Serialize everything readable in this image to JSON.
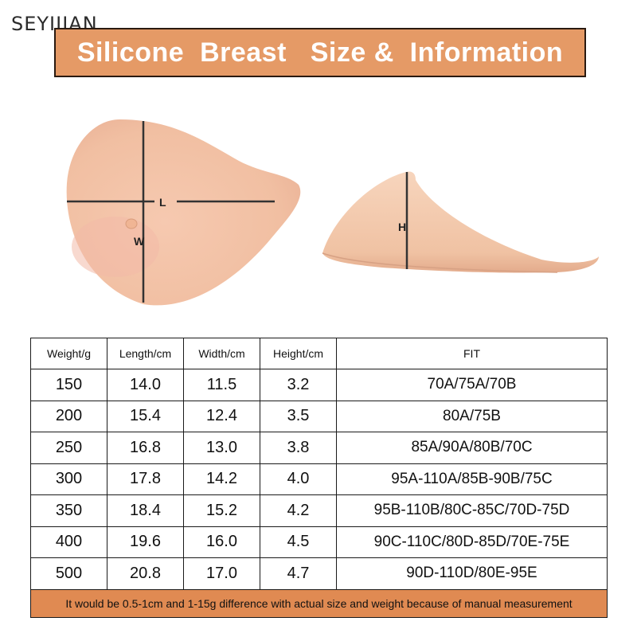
{
  "watermark": "SEYIJIAN",
  "title": "Silicone  Breast   Size &  Information",
  "labels": {
    "length": "L",
    "width": "W",
    "height": "H"
  },
  "colors": {
    "banner": "#e59a66",
    "note_row": "#e08a52",
    "skin": "#f2c2a2"
  },
  "table": {
    "headers": [
      "Weight/g",
      "Length/cm",
      "Width/cm",
      "Height/cm",
      "FIT"
    ],
    "rows": [
      [
        "150",
        "14.0",
        "11.5",
        "3.2",
        "70A/75A/70B"
      ],
      [
        "200",
        "15.4",
        "12.4",
        "3.5",
        "80A/75B"
      ],
      [
        "250",
        "16.8",
        "13.0",
        "3.8",
        "85A/90A/80B/70C"
      ],
      [
        "300",
        "17.8",
        "14.2",
        "4.0",
        "95A-110A/85B-90B/75C"
      ],
      [
        "350",
        "18.4",
        "15.2",
        "4.2",
        "95B-110B/80C-85C/70D-75D"
      ],
      [
        "400",
        "19.6",
        "16.0",
        "4.5",
        "90C-110C/80D-85D/70E-75E"
      ],
      [
        "500",
        "20.8",
        "17.0",
        "4.7",
        "90D-110D/80E-95E"
      ]
    ],
    "note": "It would be 0.5-1cm and 1-15g difference with actual size and weight because of manual measurement"
  }
}
